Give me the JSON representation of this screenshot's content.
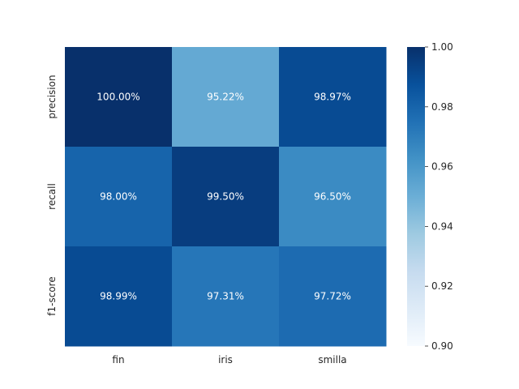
{
  "chart_data": {
    "type": "heatmap",
    "title": "",
    "xlabel": "",
    "ylabel": "",
    "x_categories": [
      "fin",
      "iris",
      "smilla"
    ],
    "y_categories": [
      "precision",
      "recall",
      "f1-score"
    ],
    "values": [
      [
        1.0,
        0.9522,
        0.9897
      ],
      [
        0.98,
        0.995,
        0.965
      ],
      [
        0.9899,
        0.9731,
        0.9772
      ]
    ],
    "cell_labels": [
      [
        "100.00%",
        "95.22%",
        "98.97%"
      ],
      [
        "98.00%",
        "99.50%",
        "96.50%"
      ],
      [
        "98.99%",
        "97.31%",
        "97.72%"
      ]
    ],
    "colorbar": {
      "range": [
        0.9,
        1.0
      ],
      "ticks": [
        "0.90",
        "0.92",
        "0.94",
        "0.96",
        "0.98",
        "1.00"
      ],
      "colormap": "Blues"
    },
    "grid": false
  }
}
